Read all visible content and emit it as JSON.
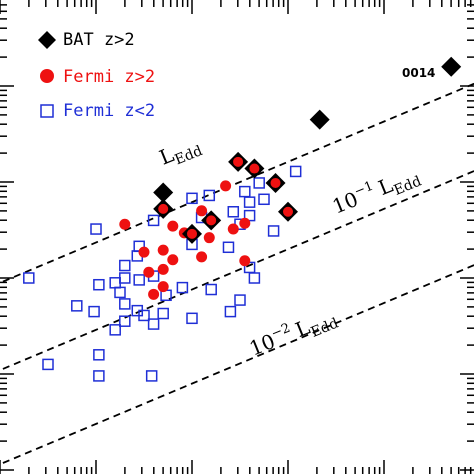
{
  "chart_data": {
    "type": "scatter",
    "title": "",
    "xlabel": "",
    "ylabel": "",
    "scale": "log-log",
    "grid": false,
    "legend_position": "top-left",
    "colors": {
      "bat": "#000000",
      "fermi_high": "#ee1111",
      "fermi_low": "#1f2fd6",
      "lines": "#000000"
    },
    "legend": [
      {
        "series": "bat",
        "label": "BAT z>2",
        "marker": "diamond"
      },
      {
        "series": "fermi_high",
        "label": "Fermi z>2",
        "marker": "filled-circle"
      },
      {
        "series": "fermi_low",
        "label": "Fermi z<2",
        "marker": "open-square"
      }
    ],
    "reference_lines": [
      {
        "name": "eddington",
        "label_main": "L",
        "label_sub": "Edd",
        "ratio": 1
      },
      {
        "name": "tenth-eddington",
        "label_prefix": "10",
        "label_exp": "−1",
        "label_main": "L",
        "label_sub": "Edd",
        "ratio": 0.1
      },
      {
        "name": "hundredth-eddington",
        "label_prefix": "10",
        "label_exp": "−2",
        "label_main": "L",
        "label_sub": "Edd",
        "ratio": 0.01
      }
    ],
    "annotations": [
      {
        "text": "0014",
        "series": "bat",
        "point_index": 0
      }
    ],
    "series": [
      {
        "id": "bat",
        "values_note": "x,y in axis decades (log units, relative to left/bottom edge)",
        "points": [
          [
            4.7,
            4.2
          ],
          [
            3.33,
            3.65
          ],
          [
            2.48,
            3.21
          ],
          [
            2.65,
            3.14
          ],
          [
            2.87,
            2.99
          ],
          [
            1.7,
            2.89
          ],
          [
            1.7,
            2.72
          ],
          [
            3.0,
            2.69
          ],
          [
            2.2,
            2.6
          ],
          [
            2.0,
            2.46
          ]
        ]
      },
      {
        "id": "fermi_high",
        "points": [
          [
            2.48,
            3.21
          ],
          [
            2.65,
            3.14
          ],
          [
            2.87,
            2.99
          ],
          [
            2.35,
            2.96
          ],
          [
            1.7,
            2.72
          ],
          [
            3.0,
            2.69
          ],
          [
            2.1,
            2.7
          ],
          [
            2.2,
            2.6
          ],
          [
            2.55,
            2.57
          ],
          [
            1.3,
            2.56
          ],
          [
            1.8,
            2.54
          ],
          [
            2.43,
            2.51
          ],
          [
            2.0,
            2.46
          ],
          [
            1.92,
            2.47
          ],
          [
            2.18,
            2.42
          ],
          [
            1.7,
            2.29
          ],
          [
            1.5,
            2.27
          ],
          [
            2.1,
            2.22
          ],
          [
            1.8,
            2.19
          ],
          [
            2.55,
            2.18
          ],
          [
            1.7,
            2.09
          ],
          [
            1.55,
            2.06
          ],
          [
            1.7,
            1.91
          ],
          [
            1.6,
            1.83
          ]
        ]
      },
      {
        "id": "fermi_low",
        "points": [
          [
            3.08,
            3.11
          ],
          [
            2.7,
            2.99
          ],
          [
            2.55,
            2.9
          ],
          [
            2.6,
            2.65
          ],
          [
            2.18,
            2.86
          ],
          [
            2.0,
            2.83
          ],
          [
            2.75,
            2.82
          ],
          [
            2.6,
            2.79
          ],
          [
            2.43,
            2.69
          ],
          [
            2.1,
            2.63
          ],
          [
            2.5,
            2.56
          ],
          [
            1.6,
            2.6
          ],
          [
            1.0,
            2.51
          ],
          [
            2.85,
            2.49
          ],
          [
            2.38,
            2.32
          ],
          [
            2.0,
            2.35
          ],
          [
            1.45,
            2.33
          ],
          [
            1.43,
            2.23
          ],
          [
            1.3,
            2.13
          ],
          [
            2.6,
            2.11
          ],
          [
            0.3,
            2.0
          ],
          [
            1.3,
            2.0
          ],
          [
            2.65,
            2.0
          ],
          [
            1.6,
            2.02
          ],
          [
            1.45,
            1.98
          ],
          [
            1.2,
            1.95
          ],
          [
            1.03,
            1.93
          ],
          [
            1.9,
            1.9
          ],
          [
            1.25,
            1.85
          ],
          [
            1.73,
            1.82
          ],
          [
            2.2,
            1.88
          ],
          [
            2.5,
            1.77
          ],
          [
            0.8,
            1.71
          ],
          [
            1.3,
            1.73
          ],
          [
            1.43,
            1.66
          ],
          [
            2.4,
            1.65
          ],
          [
            0.98,
            1.65
          ],
          [
            1.5,
            1.61
          ],
          [
            1.7,
            1.63
          ],
          [
            2.0,
            1.58
          ],
          [
            1.3,
            1.55
          ],
          [
            1.6,
            1.52
          ],
          [
            1.2,
            1.46
          ],
          [
            1.03,
            1.2
          ],
          [
            0.5,
            1.1
          ],
          [
            1.03,
            0.98
          ],
          [
            1.58,
            0.98
          ]
        ]
      }
    ]
  }
}
